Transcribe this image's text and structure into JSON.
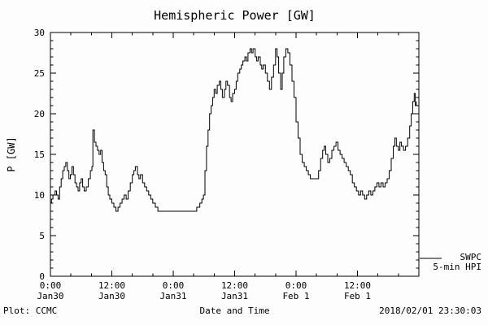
{
  "title": "Hemispheric Power [GW]",
  "footer": {
    "left": "Plot: CCMC",
    "right": "2018/02/01 23:30:03"
  },
  "legend": {
    "line1": "SWPC",
    "line2": "5-min HPI"
  },
  "chart_data": {
    "type": "line",
    "title": "Hemispheric Power [GW]",
    "xlabel": "Date and Time",
    "ylabel": "P [GW]",
    "ylim": [
      0,
      30
    ],
    "xlim_hours": [
      0,
      72
    ],
    "y_ticks": [
      0,
      5,
      10,
      15,
      20,
      25,
      30
    ],
    "x_ticks": [
      {
        "hour": 0,
        "time": "0:00",
        "date": "Jan30"
      },
      {
        "hour": 12,
        "time": "12:00",
        "date": "Jan30"
      },
      {
        "hour": 24,
        "time": "0:00",
        "date": "Jan31"
      },
      {
        "hour": 36,
        "time": "12:00",
        "date": "Jan31"
      },
      {
        "hour": 48,
        "time": "0:00",
        "date": "Feb 1"
      },
      {
        "hour": 60,
        "time": "12:00",
        "date": "Feb 1"
      }
    ],
    "grid": false,
    "line_color": "#000000",
    "series": [
      {
        "name": "SWPC 5-min HPI",
        "points": [
          [
            0,
            9
          ],
          [
            0.2,
            9.5
          ],
          [
            0.5,
            10
          ],
          [
            0.9,
            10.5
          ],
          [
            1.2,
            10
          ],
          [
            1.5,
            9.5
          ],
          [
            1.8,
            11
          ],
          [
            2.1,
            12
          ],
          [
            2.4,
            13
          ],
          [
            2.7,
            13.5
          ],
          [
            3.0,
            14
          ],
          [
            3.3,
            13
          ],
          [
            3.6,
            12
          ],
          [
            3.9,
            12.5
          ],
          [
            4.2,
            13.5
          ],
          [
            4.5,
            12.5
          ],
          [
            4.8,
            11.5
          ],
          [
            5.1,
            11
          ],
          [
            5.4,
            10.5
          ],
          [
            5.7,
            11.5
          ],
          [
            6.0,
            12
          ],
          [
            6.3,
            11
          ],
          [
            6.6,
            10.5
          ],
          [
            7.0,
            11
          ],
          [
            7.4,
            12
          ],
          [
            7.8,
            13
          ],
          [
            8.1,
            13.5
          ],
          [
            8.3,
            18
          ],
          [
            8.6,
            16.5
          ],
          [
            8.9,
            16
          ],
          [
            9.2,
            15.5
          ],
          [
            9.5,
            15
          ],
          [
            9.8,
            15.5
          ],
          [
            10.1,
            14
          ],
          [
            10.4,
            13
          ],
          [
            10.7,
            12.5
          ],
          [
            11.0,
            11
          ],
          [
            11.3,
            10
          ],
          [
            11.6,
            9.5
          ],
          [
            12.0,
            9
          ],
          [
            12.4,
            8.5
          ],
          [
            12.8,
            8
          ],
          [
            13.2,
            8.5
          ],
          [
            13.6,
            9
          ],
          [
            14.0,
            9.5
          ],
          [
            14.4,
            10
          ],
          [
            14.8,
            9.5
          ],
          [
            15.2,
            10.5
          ],
          [
            15.6,
            11.5
          ],
          [
            16.0,
            12.5
          ],
          [
            16.3,
            13
          ],
          [
            16.6,
            13.5
          ],
          [
            17.0,
            12.5
          ],
          [
            17.3,
            12
          ],
          [
            17.6,
            12.5
          ],
          [
            18.0,
            11.5
          ],
          [
            18.4,
            11
          ],
          [
            18.8,
            10.5
          ],
          [
            19.2,
            10
          ],
          [
            19.6,
            9.5
          ],
          [
            20.0,
            9
          ],
          [
            20.5,
            8.5
          ],
          [
            21.0,
            8
          ],
          [
            22,
            8
          ],
          [
            23,
            8
          ],
          [
            24,
            8
          ],
          [
            25,
            8
          ],
          [
            26,
            8
          ],
          [
            27,
            8
          ],
          [
            28,
            8
          ],
          [
            28.6,
            8.5
          ],
          [
            29.2,
            9
          ],
          [
            29.6,
            9.5
          ],
          [
            29.9,
            10
          ],
          [
            30.2,
            13
          ],
          [
            30.5,
            16
          ],
          [
            30.8,
            18
          ],
          [
            31.1,
            20
          ],
          [
            31.4,
            21
          ],
          [
            31.7,
            22
          ],
          [
            32.0,
            23
          ],
          [
            32.3,
            22.5
          ],
          [
            32.6,
            23.5
          ],
          [
            33.0,
            24
          ],
          [
            33.3,
            23
          ],
          [
            33.6,
            22
          ],
          [
            34.0,
            23
          ],
          [
            34.3,
            24
          ],
          [
            34.6,
            23.5
          ],
          [
            35.0,
            22
          ],
          [
            35.3,
            21.5
          ],
          [
            35.6,
            22.5
          ],
          [
            36.0,
            23
          ],
          [
            36.3,
            24
          ],
          [
            36.6,
            25
          ],
          [
            37.0,
            25.5
          ],
          [
            37.3,
            26
          ],
          [
            37.6,
            26.5
          ],
          [
            38.0,
            27
          ],
          [
            38.3,
            26.5
          ],
          [
            38.6,
            27.5
          ],
          [
            39.0,
            28
          ],
          [
            39.3,
            27.5
          ],
          [
            39.6,
            28
          ],
          [
            40.0,
            27
          ],
          [
            40.3,
            26.5
          ],
          [
            40.6,
            27
          ],
          [
            41.0,
            26
          ],
          [
            41.3,
            25.5
          ],
          [
            41.6,
            26
          ],
          [
            42.0,
            25
          ],
          [
            42.4,
            24
          ],
          [
            42.8,
            23
          ],
          [
            43.2,
            24.5
          ],
          [
            43.6,
            26
          ],
          [
            44.0,
            28
          ],
          [
            44.3,
            27
          ],
          [
            44.6,
            25
          ],
          [
            45.0,
            23
          ],
          [
            45.3,
            25
          ],
          [
            45.6,
            27
          ],
          [
            46.0,
            28
          ],
          [
            46.4,
            27.5
          ],
          [
            46.8,
            26
          ],
          [
            47.2,
            24
          ],
          [
            47.6,
            22
          ],
          [
            48.0,
            19
          ],
          [
            48.4,
            17
          ],
          [
            48.8,
            15
          ],
          [
            49.2,
            14
          ],
          [
            49.6,
            13.5
          ],
          [
            50.0,
            13
          ],
          [
            50.4,
            12.5
          ],
          [
            50.8,
            12
          ],
          [
            51.4,
            12
          ],
          [
            52.0,
            12
          ],
          [
            52.4,
            13
          ],
          [
            52.8,
            14.5
          ],
          [
            53.2,
            15.5
          ],
          [
            53.5,
            16
          ],
          [
            53.8,
            15
          ],
          [
            54.2,
            14
          ],
          [
            54.6,
            14.5
          ],
          [
            55.0,
            15.5
          ],
          [
            55.4,
            16
          ],
          [
            55.8,
            16.5
          ],
          [
            56.2,
            15.5
          ],
          [
            56.6,
            15
          ],
          [
            57.0,
            14.5
          ],
          [
            57.4,
            14
          ],
          [
            57.8,
            13.5
          ],
          [
            58.2,
            13
          ],
          [
            58.6,
            12.5
          ],
          [
            59.0,
            11.5
          ],
          [
            59.4,
            11
          ],
          [
            59.8,
            10.5
          ],
          [
            60.2,
            10
          ],
          [
            60.6,
            10.5
          ],
          [
            61.0,
            10
          ],
          [
            61.4,
            9.5
          ],
          [
            61.8,
            10
          ],
          [
            62.2,
            10.5
          ],
          [
            62.6,
            10
          ],
          [
            63.0,
            10.5
          ],
          [
            63.4,
            11
          ],
          [
            63.8,
            11.5
          ],
          [
            64.2,
            11
          ],
          [
            64.6,
            11.5
          ],
          [
            65.0,
            11
          ],
          [
            65.4,
            11.5
          ],
          [
            65.8,
            12
          ],
          [
            66.2,
            13
          ],
          [
            66.6,
            14.5
          ],
          [
            67.0,
            16
          ],
          [
            67.3,
            17
          ],
          [
            67.6,
            16
          ],
          [
            68.0,
            15.5
          ],
          [
            68.3,
            16.5
          ],
          [
            68.6,
            16
          ],
          [
            69.0,
            15.5
          ],
          [
            69.4,
            16
          ],
          [
            69.8,
            17
          ],
          [
            70.2,
            18.5
          ],
          [
            70.5,
            20
          ],
          [
            70.8,
            21.5
          ],
          [
            71.1,
            22.5
          ],
          [
            71.3,
            21
          ],
          [
            71.5,
            21.5
          ]
        ]
      }
    ]
  }
}
